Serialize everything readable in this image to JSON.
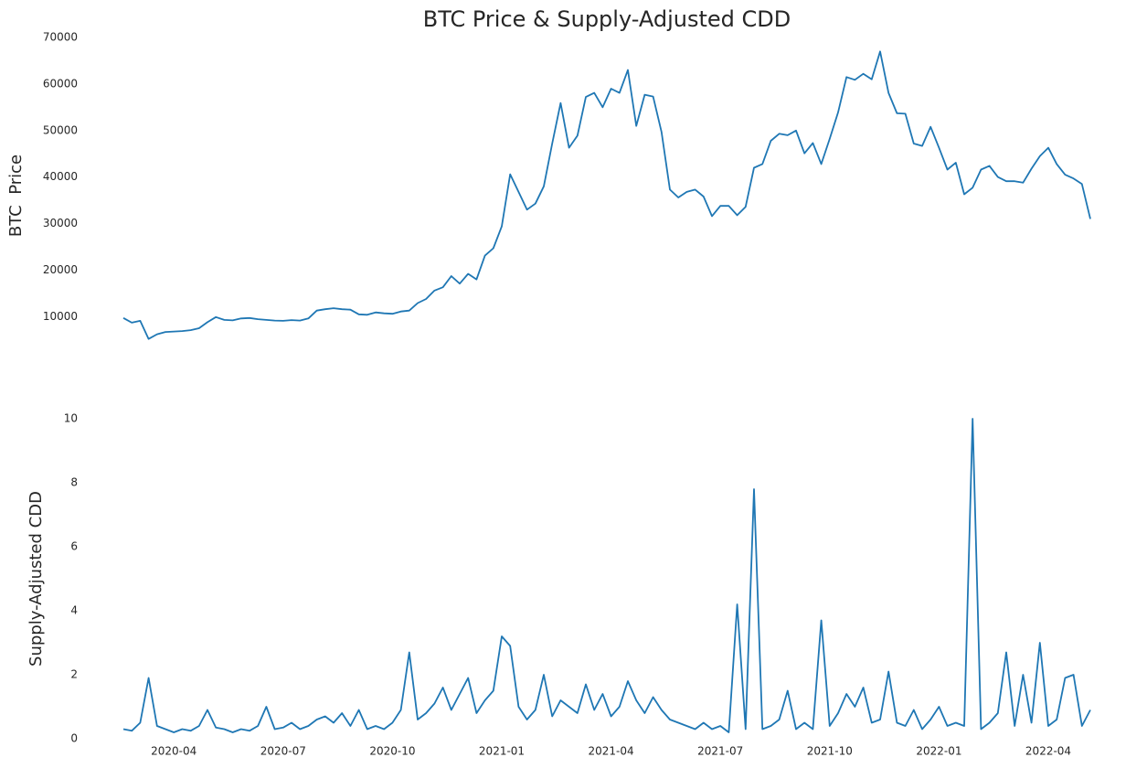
{
  "chart_data": [
    {
      "type": "line",
      "title": "BTC Price & Supply-Adjusted CDD",
      "ylabel": "BTC  Price",
      "color": "#1f77b4",
      "values": [
        9700,
        8700,
        9100,
        5200,
        6200,
        6700,
        6800,
        6900,
        7100,
        7500,
        8800,
        9900,
        9300,
        9200,
        9600,
        9700,
        9450,
        9300,
        9150,
        9100,
        9250,
        9150,
        9600,
        11300,
        11600,
        11800,
        11600,
        11500,
        10500,
        10400,
        10900,
        10700,
        10600,
        11100,
        11300,
        12900,
        13800,
        15600,
        16300,
        18700,
        17100,
        19200,
        18000,
        23100,
        24700,
        29400,
        40600,
        36800,
        33000,
        34300,
        38000,
        47200,
        55900,
        46300,
        48900,
        57200,
        58100,
        55000,
        59000,
        58100,
        63000,
        51000,
        57700,
        57300,
        49700,
        37300,
        35600,
        36800,
        37300,
        35800,
        31600,
        33800,
        33800,
        31800,
        33600,
        42000,
        42800,
        47800,
        49300,
        49000,
        50000,
        45100,
        47300,
        42800,
        48200,
        53900,
        61500,
        60900,
        62200,
        61000,
        67000,
        58100,
        53700,
        53600,
        47200,
        46700,
        50800,
        46300,
        41600,
        43100,
        36300,
        37700,
        41600,
        42400,
        40000,
        39100,
        39100,
        38800,
        41800,
        44500,
        46300,
        42800,
        40500,
        39700,
        38500,
        31000
      ],
      "ylim": [
        2000,
        70000
      ],
      "yticks": [
        10000,
        20000,
        30000,
        40000,
        50000,
        60000,
        70000
      ]
    },
    {
      "type": "line",
      "ylabel": "Supply-Adjusted CDD",
      "color": "#1f77b4",
      "categories": [
        null,
        null,
        null,
        null,
        null,
        null,
        "2020-04",
        null,
        null,
        null,
        null,
        null,
        null,
        null,
        null,
        null,
        null,
        null,
        null,
        "2020-07",
        null,
        null,
        null,
        null,
        null,
        null,
        null,
        null,
        null,
        null,
        null,
        null,
        "2020-10",
        null,
        null,
        null,
        null,
        null,
        null,
        null,
        null,
        null,
        null,
        null,
        null,
        "2021-01",
        null,
        null,
        null,
        null,
        null,
        null,
        null,
        null,
        null,
        null,
        null,
        null,
        "2021-04",
        null,
        null,
        null,
        null,
        null,
        null,
        null,
        null,
        null,
        null,
        null,
        null,
        "2021-07",
        null,
        null,
        null,
        null,
        null,
        null,
        null,
        null,
        null,
        null,
        null,
        null,
        "2021-10",
        null,
        null,
        null,
        null,
        null,
        null,
        null,
        null,
        null,
        null,
        null,
        null,
        "2022-01",
        null,
        null,
        null,
        null,
        null,
        null,
        null,
        null,
        null,
        null,
        null,
        null,
        "2022-04",
        null,
        null,
        null,
        null,
        null
      ],
      "values": [
        0.3,
        0.25,
        0.5,
        1.9,
        0.4,
        0.3,
        0.2,
        0.3,
        0.25,
        0.4,
        0.9,
        0.35,
        0.3,
        0.2,
        0.3,
        0.25,
        0.4,
        1.0,
        0.3,
        0.35,
        0.5,
        0.3,
        0.4,
        0.6,
        0.7,
        0.5,
        0.8,
        0.4,
        0.9,
        0.3,
        0.4,
        0.3,
        0.5,
        0.9,
        2.7,
        0.6,
        0.8,
        1.1,
        1.6,
        0.9,
        1.4,
        1.9,
        0.8,
        1.2,
        1.5,
        3.2,
        2.9,
        1.0,
        0.6,
        0.9,
        2.0,
        0.7,
        1.2,
        1.0,
        0.8,
        1.7,
        0.9,
        1.4,
        0.7,
        1.0,
        1.8,
        1.2,
        0.8,
        1.3,
        0.9,
        0.6,
        0.5,
        0.4,
        0.3,
        0.5,
        0.3,
        0.4,
        0.2,
        4.2,
        0.3,
        7.8,
        0.3,
        0.4,
        0.6,
        1.5,
        0.3,
        0.5,
        0.3,
        3.7,
        0.4,
        0.8,
        1.4,
        1.0,
        1.6,
        0.5,
        0.6,
        2.1,
        0.5,
        0.4,
        0.9,
        0.3,
        0.6,
        1.0,
        0.4,
        0.5,
        0.4,
        10.0,
        0.3,
        0.5,
        0.8,
        2.7,
        0.4,
        2.0,
        0.5,
        3.0,
        0.4,
        0.6,
        1.9,
        2.0,
        0.4,
        0.9
      ],
      "ylim": [
        0,
        10
      ],
      "yticks": [
        0,
        2,
        4,
        6,
        8,
        10
      ]
    }
  ]
}
